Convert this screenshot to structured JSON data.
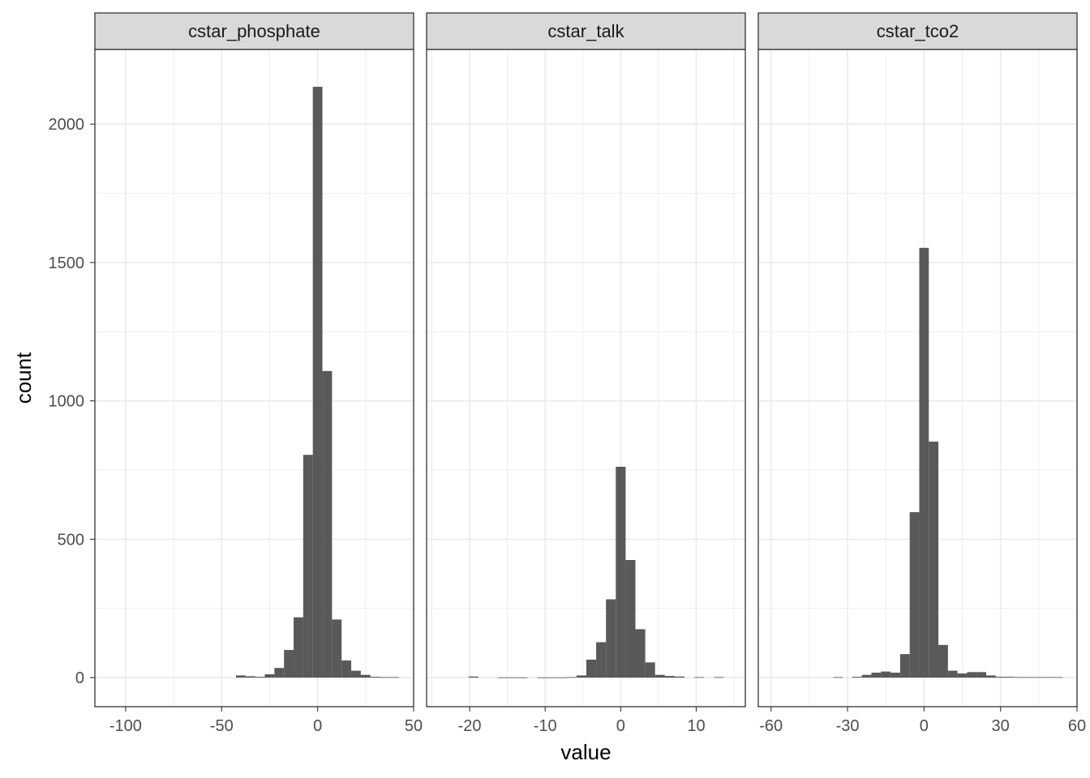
{
  "chart_data": {
    "type": "bar",
    "xlabel": "value",
    "ylabel": "count",
    "ylim": [
      -105,
      2270
    ],
    "y_ticks": [
      0,
      500,
      1000,
      1500,
      2000
    ],
    "y_tick_labels": [
      "0",
      "500",
      "1000",
      "1500",
      "2000"
    ],
    "grid": true,
    "colors": {
      "bar": "#595959",
      "grid": "#ebebeb",
      "strip_bg": "#d9d9d9",
      "frame": "#333333"
    },
    "facets": [
      {
        "name": "cstar_phosphate",
        "xlim": [
          -116,
          50
        ],
        "x_ticks": [
          -100,
          -50,
          0,
          50
        ],
        "x_tick_labels": [
          "-100",
          "-50",
          "0",
          "50"
        ],
        "bin_width": 5,
        "bins": [
          {
            "x": -40,
            "count": 8
          },
          {
            "x": -35,
            "count": 5
          },
          {
            "x": -30,
            "count": 3
          },
          {
            "x": -25,
            "count": 12
          },
          {
            "x": -20,
            "count": 35
          },
          {
            "x": -15,
            "count": 100
          },
          {
            "x": -10,
            "count": 218
          },
          {
            "x": -5,
            "count": 805
          },
          {
            "x": 0,
            "count": 2135
          },
          {
            "x": 5,
            "count": 1108
          },
          {
            "x": 10,
            "count": 210
          },
          {
            "x": 15,
            "count": 62
          },
          {
            "x": 20,
            "count": 25
          },
          {
            "x": 25,
            "count": 10
          },
          {
            "x": 30,
            "count": 3
          },
          {
            "x": 35,
            "count": 2
          },
          {
            "x": 40,
            "count": 2
          }
        ]
      },
      {
        "name": "cstar_talk",
        "xlim": [
          -25.7,
          16.5
        ],
        "x_ticks": [
          -20,
          -10,
          0,
          10
        ],
        "x_tick_labels": [
          "-20",
          "-10",
          "0",
          "10"
        ],
        "bin_width": 1.3,
        "bins": [
          {
            "x": -19.5,
            "count": 4
          },
          {
            "x": -15.6,
            "count": 1
          },
          {
            "x": -14.3,
            "count": 1
          },
          {
            "x": -13.0,
            "count": 1
          },
          {
            "x": -10.4,
            "count": 1
          },
          {
            "x": -9.1,
            "count": 1
          },
          {
            "x": -7.8,
            "count": 1
          },
          {
            "x": -6.5,
            "count": 2
          },
          {
            "x": -5.2,
            "count": 8
          },
          {
            "x": -3.9,
            "count": 65
          },
          {
            "x": -2.6,
            "count": 128
          },
          {
            "x": -1.3,
            "count": 283
          },
          {
            "x": 0.0,
            "count": 762
          },
          {
            "x": 1.3,
            "count": 425
          },
          {
            "x": 2.6,
            "count": 175
          },
          {
            "x": 3.9,
            "count": 55
          },
          {
            "x": 5.2,
            "count": 10
          },
          {
            "x": 6.5,
            "count": 6
          },
          {
            "x": 7.8,
            "count": 4
          },
          {
            "x": 10.4,
            "count": 2
          },
          {
            "x": 13.0,
            "count": 2
          }
        ]
      },
      {
        "name": "cstar_tco2",
        "xlim": [
          -65,
          60
        ],
        "x_ticks": [
          -60,
          -30,
          0,
          30,
          60
        ],
        "x_tick_labels": [
          "-60",
          "-30",
          "0",
          "30",
          "60"
        ],
        "bin_width": 3.75,
        "bins": [
          {
            "x": -33.75,
            "count": 2
          },
          {
            "x": -26.25,
            "count": 3
          },
          {
            "x": -22.5,
            "count": 10
          },
          {
            "x": -18.75,
            "count": 18
          },
          {
            "x": -15.0,
            "count": 22
          },
          {
            "x": -11.25,
            "count": 18
          },
          {
            "x": -7.5,
            "count": 85
          },
          {
            "x": -3.75,
            "count": 598
          },
          {
            "x": 0.0,
            "count": 1553
          },
          {
            "x": 3.75,
            "count": 853
          },
          {
            "x": 7.5,
            "count": 118
          },
          {
            "x": 11.25,
            "count": 25
          },
          {
            "x": 15.0,
            "count": 15
          },
          {
            "x": 18.75,
            "count": 20
          },
          {
            "x": 22.5,
            "count": 20
          },
          {
            "x": 26.25,
            "count": 8
          },
          {
            "x": 30.0,
            "count": 3
          },
          {
            "x": 33.75,
            "count": 3
          },
          {
            "x": 37.5,
            "count": 2
          },
          {
            "x": 41.25,
            "count": 2
          },
          {
            "x": 45.0,
            "count": 2
          },
          {
            "x": 48.75,
            "count": 2
          },
          {
            "x": 52.5,
            "count": 2
          }
        ]
      }
    ]
  }
}
